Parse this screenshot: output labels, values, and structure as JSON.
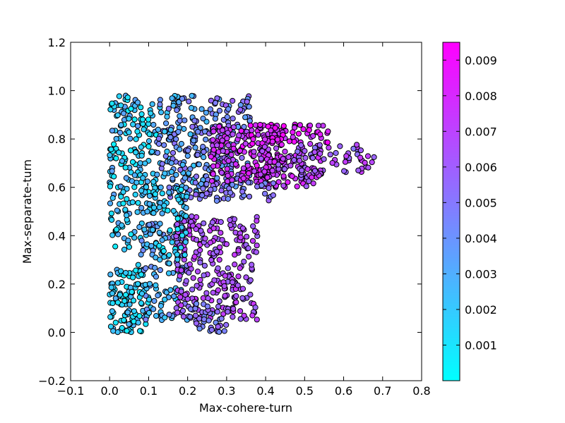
{
  "chart_data": {
    "type": "scatter",
    "title": "",
    "xlabel": "Max-cohere-turn",
    "ylabel": "Max-separate-turn",
    "xlim": [
      -0.1,
      0.8
    ],
    "ylim": [
      -0.2,
      1.2
    ],
    "xticks": [
      -0.1,
      0.0,
      0.1,
      0.2,
      0.3,
      0.4,
      0.5,
      0.6,
      0.7,
      0.8
    ],
    "xtick_labels": [
      "−0.1",
      "0.0",
      "0.1",
      "0.2",
      "0.3",
      "0.4",
      "0.5",
      "0.6",
      "0.7",
      "0.8"
    ],
    "yticks": [
      -0.2,
      0.0,
      0.2,
      0.4,
      0.6,
      0.8,
      1.0,
      1.2
    ],
    "ytick_labels": [
      "−0.2",
      "0.0",
      "0.2",
      "0.4",
      "0.6",
      "0.8",
      "1.0",
      "1.2"
    ],
    "grid": false,
    "colorbar": {
      "cmap": "cool",
      "min_color": "#00ffff",
      "max_color": "#ff00ff",
      "range": [
        0.0,
        0.0095
      ],
      "ticks": [
        0.001,
        0.002,
        0.003,
        0.004,
        0.005,
        0.006,
        0.007,
        0.008,
        0.009
      ],
      "tick_labels": [
        "0.001",
        "0.002",
        "0.003",
        "0.004",
        "0.005",
        "0.006",
        "0.007",
        "0.008",
        "0.009"
      ]
    },
    "marker_edge_color": "#000000",
    "point_groups": [
      {
        "xr": [
          0.0,
          0.12
        ],
        "yr": [
          0.34,
          0.98
        ],
        "cr": [
          0.0005,
          0.0035
        ],
        "n": 220
      },
      {
        "xr": [
          0.12,
          0.25
        ],
        "yr": [
          0.55,
          0.98
        ],
        "cr": [
          0.002,
          0.0055
        ],
        "n": 170
      },
      {
        "xr": [
          0.25,
          0.36
        ],
        "yr": [
          0.6,
          0.98
        ],
        "cr": [
          0.003,
          0.006
        ],
        "n": 120
      },
      {
        "xr": [
          0.26,
          0.45
        ],
        "yr": [
          0.62,
          0.86
        ],
        "cr": [
          0.0065,
          0.009
        ],
        "n": 170
      },
      {
        "xr": [
          0.36,
          0.56
        ],
        "yr": [
          0.78,
          0.86
        ],
        "cr": [
          0.007,
          0.0095
        ],
        "n": 60
      },
      {
        "xr": [
          0.38,
          0.55
        ],
        "yr": [
          0.6,
          0.78
        ],
        "cr": [
          0.0055,
          0.0085
        ],
        "n": 110
      },
      {
        "xr": [
          0.48,
          0.68
        ],
        "yr": [
          0.66,
          0.78
        ],
        "cr": [
          0.005,
          0.0075
        ],
        "n": 55
      },
      {
        "xr": [
          0.22,
          0.42
        ],
        "yr": [
          0.54,
          0.62
        ],
        "cr": [
          0.004,
          0.006
        ],
        "n": 50
      },
      {
        "xr": [
          0.0,
          0.1
        ],
        "yr": [
          0.0,
          0.28
        ],
        "cr": [
          0.0005,
          0.003
        ],
        "n": 110
      },
      {
        "xr": [
          0.08,
          0.2
        ],
        "yr": [
          0.05,
          0.45
        ],
        "cr": [
          0.0015,
          0.005
        ],
        "n": 110
      },
      {
        "xr": [
          0.17,
          0.38
        ],
        "yr": [
          0.05,
          0.48
        ],
        "cr": [
          0.0055,
          0.0075
        ],
        "n": 260
      },
      {
        "xr": [
          0.2,
          0.3
        ],
        "yr": [
          0.0,
          0.12
        ],
        "cr": [
          0.004,
          0.006
        ],
        "n": 40
      },
      {
        "xr": [
          0.1,
          0.2
        ],
        "yr": [
          0.3,
          0.6
        ],
        "cr": [
          0.0005,
          0.003
        ],
        "n": 60
      }
    ]
  }
}
